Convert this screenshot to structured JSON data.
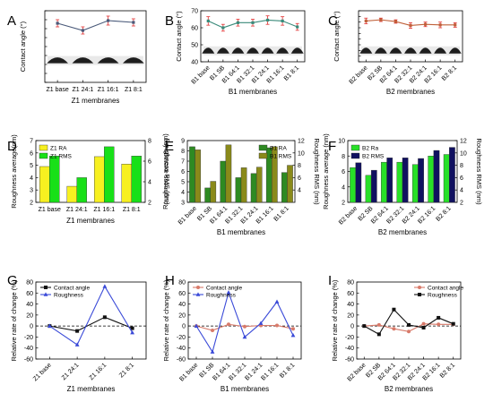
{
  "colors": {
    "z1_angle": "#4a5a7a",
    "b1_angle": "#3a8a7a",
    "b2_angle": "#c0603a",
    "error_bar": "#e03030",
    "z1_ra": "#f7f020",
    "z1_rms": "#18e018",
    "b1_ra": "#2e8a22",
    "b1_rms": "#8a8a1a",
    "b2_ra": "#28e028",
    "b2_rms": "#101060",
    "rate_angle": "#111111",
    "rate_rough": "#3a4ad8",
    "rate_angle_b": "#d87a6a",
    "rate_rough_b": "#3a4ad8",
    "rate_angle_c": "#d87a6a",
    "rate_rough_c": "#111111"
  },
  "chart_data": [
    {
      "panel": "A",
      "type": "line",
      "categories": [
        "Z1 base",
        "Z1 24:1",
        "Z1 16:1",
        "Z1 8:1"
      ],
      "xlabel": "Z1 membranes",
      "ylabel": "Contact angle (°)",
      "ylim": [
        0,
        80
      ],
      "yticks": [
        0,
        10,
        20,
        30,
        40,
        50,
        60,
        70,
        80
      ],
      "tick_labels_visible": false,
      "rotate_categories": false,
      "series": [
        {
          "values": [
            66,
            58,
            69,
            67
          ],
          "errors": [
            4,
            4,
            5,
            4
          ]
        }
      ]
    },
    {
      "panel": "B",
      "type": "line",
      "categories": [
        "B1 base",
        "B1 SB",
        "B1 64:1",
        "B1 32:1",
        "B1 24:1",
        "B1 16:1",
        "B1 8:1"
      ],
      "xlabel": "B1 membranes",
      "ylabel": "Contact angle (°)",
      "ylim": [
        40,
        70
      ],
      "yticks": [
        40,
        50,
        60,
        70
      ],
      "tick_labels_visible": true,
      "rotate_categories": true,
      "series": [
        {
          "values": [
            64,
            60,
            63,
            63,
            64.5,
            64,
            60.5
          ],
          "errors": [
            2.5,
            2,
            2,
            2,
            2.5,
            2.5,
            2
          ]
        }
      ]
    },
    {
      "panel": "C",
      "type": "line",
      "categories": [
        "B2 base",
        "B2 SB",
        "B2 64:1",
        "B2 32:1",
        "B2 24:1",
        "B2 16:1",
        "B2 8:1"
      ],
      "xlabel": "B2 membranes",
      "ylabel": "Contact angle (°)",
      "ylim": [
        0,
        90
      ],
      "yticks": [
        0,
        10,
        20,
        30,
        40,
        50,
        60,
        70,
        80,
        90
      ],
      "tick_labels_visible": false,
      "rotate_categories": true,
      "series": [
        {
          "values": [
            72,
            74,
            71,
            64,
            66,
            65,
            65
          ],
          "errors": [
            5,
            3,
            3,
            5,
            4,
            5,
            4
          ]
        }
      ]
    },
    {
      "panel": "D",
      "type": "bar",
      "categories": [
        "Z1 base",
        "Z1 24:1",
        "Z1 16:1",
        "Z1 8:1"
      ],
      "xlabel": "Z1 membranes",
      "ylabel": "Roughness average(nm)",
      "y2label": "Roughness RMS (nm)",
      "ylim": [
        2,
        7
      ],
      "yticks": [
        2,
        3,
        4,
        5,
        6,
        7
      ],
      "y2lim": [
        2,
        8
      ],
      "y2ticks": [
        2,
        4,
        6,
        8
      ],
      "legend": [
        "Z1 RA",
        "Z1 RMS"
      ],
      "legend_position": "top-left",
      "rotate_categories": false,
      "series": [
        {
          "name": "Z1 RA",
          "values": [
            4.9,
            3.3,
            5.7,
            5.1
          ],
          "axis": "left"
        },
        {
          "name": "Z1 RMS",
          "values": [
            6.5,
            4.4,
            7.4,
            6.5
          ],
          "axis": "right"
        }
      ]
    },
    {
      "panel": "E",
      "type": "bar",
      "categories": [
        "B1 base",
        "B1 SB",
        "B1 64:1",
        "B1 32:1",
        "B1 24:1",
        "B1 16:1",
        "B1 8:1"
      ],
      "xlabel": "B1 membranes",
      "ylabel": "Roughness average (nm)",
      "y2label": "Roughness RMS (nm)",
      "ylim": [
        3,
        9
      ],
      "yticks": [
        3,
        4,
        5,
        6,
        7,
        8,
        9
      ],
      "y2lim": [
        2,
        12
      ],
      "y2ticks": [
        4,
        6,
        8,
        10,
        12
      ],
      "legend": [
        "B1 RA",
        "B1 RMS"
      ],
      "legend_position": "top-right",
      "rotate_categories": true,
      "series": [
        {
          "name": "B1 RA",
          "values": [
            8.4,
            4.4,
            7.0,
            5.4,
            5.8,
            8.3,
            5.9
          ],
          "axis": "left"
        },
        {
          "name": "B1 RMS",
          "values": [
            10.5,
            5.4,
            11.3,
            7.6,
            7.7,
            11.0,
            8.0
          ],
          "axis": "right"
        }
      ]
    },
    {
      "panel": "F",
      "type": "bar",
      "categories": [
        "B2 base",
        "B2 SB",
        "B2 64:1",
        "B2 32:1",
        "B2 24:1",
        "B2 16:1",
        "B2 8:1"
      ],
      "xlabel": "B2 membranes",
      "ylabel": "Roughness average (nm)",
      "y2label": "Roughness RMS (nm)",
      "ylim": [
        2,
        10
      ],
      "yticks": [
        2,
        4,
        6,
        8,
        10
      ],
      "y2lim": [
        2,
        12
      ],
      "y2ticks": [
        2,
        4,
        6,
        8,
        10,
        12
      ],
      "legend": [
        "B2 Ra",
        "B2 RMS"
      ],
      "legend_position": "top-left",
      "rotate_categories": true,
      "series": [
        {
          "name": "B2 Ra",
          "values": [
            6.5,
            5.5,
            7.2,
            7.2,
            6.9,
            8.0,
            8.2
          ],
          "axis": "left"
        },
        {
          "name": "B2 RMS",
          "values": [
            8.4,
            7.2,
            9.2,
            9.2,
            9.1,
            10.4,
            10.9
          ],
          "axis": "right"
        }
      ]
    },
    {
      "panel": "G",
      "type": "line",
      "categories": [
        "Z1 base",
        "Z1 24:1",
        "Z1 16:1",
        "Z1 8:1"
      ],
      "xlabel": "Z1 membranes",
      "ylabel": "Relative rate of change (%)",
      "ylim": [
        -60,
        80
      ],
      "yticks": [
        -60,
        -40,
        -20,
        0,
        20,
        40,
        60,
        80
      ],
      "legend": [
        "Contact angle",
        "Roughness"
      ],
      "legend_position": "top-left",
      "rotate_categories": true,
      "zero_line": true,
      "series": [
        {
          "name": "Contact angle",
          "values": [
            0,
            -9,
            16,
            -4
          ]
        },
        {
          "name": "Roughness",
          "values": [
            0,
            -34,
            72,
            -12
          ]
        }
      ]
    },
    {
      "panel": "H",
      "type": "line",
      "categories": [
        "B1 base",
        "B1 SB",
        "B1 64:1",
        "B1 32:1",
        "B1 24:1",
        "B1 16:1",
        "B1 8:1"
      ],
      "xlabel": "B1 membranes",
      "ylabel": "Relative rate of change (%)",
      "ylim": [
        -60,
        80
      ],
      "yticks": [
        -60,
        -40,
        -20,
        0,
        20,
        40,
        60,
        80
      ],
      "legend": [
        "Contact angle",
        "Roughness"
      ],
      "legend_position": "top-left",
      "rotate_categories": true,
      "zero_line": true,
      "series": [
        {
          "name": "Contact angle",
          "values": [
            0,
            -8,
            3,
            -1,
            1,
            1,
            -5
          ]
        },
        {
          "name": "Roughness",
          "values": [
            0,
            -47,
            61,
            -20,
            5,
            44,
            -17
          ]
        }
      ]
    },
    {
      "panel": "I",
      "type": "line",
      "categories": [
        "B2 base",
        "B2 SB",
        "B2 64:1",
        "B2 32:1",
        "B2 24:1",
        "B2 16:1",
        "B2 8:1"
      ],
      "xlabel": "B2 membranes",
      "ylabel": "Relative rate of change (%)",
      "ylim": [
        -60,
        80
      ],
      "yticks": [
        -60,
        -40,
        -20,
        0,
        20,
        40,
        60,
        80
      ],
      "legend": [
        "Contact angle",
        "Roughness"
      ],
      "legend_position": "top-right",
      "rotate_categories": true,
      "zero_line": true,
      "series": [
        {
          "name": "Contact angle",
          "values": [
            0,
            2,
            -5,
            -10,
            4,
            3,
            3
          ]
        },
        {
          "name": "Roughness",
          "values": [
            0,
            -15,
            30,
            2,
            -3,
            15,
            4
          ]
        }
      ]
    }
  ]
}
